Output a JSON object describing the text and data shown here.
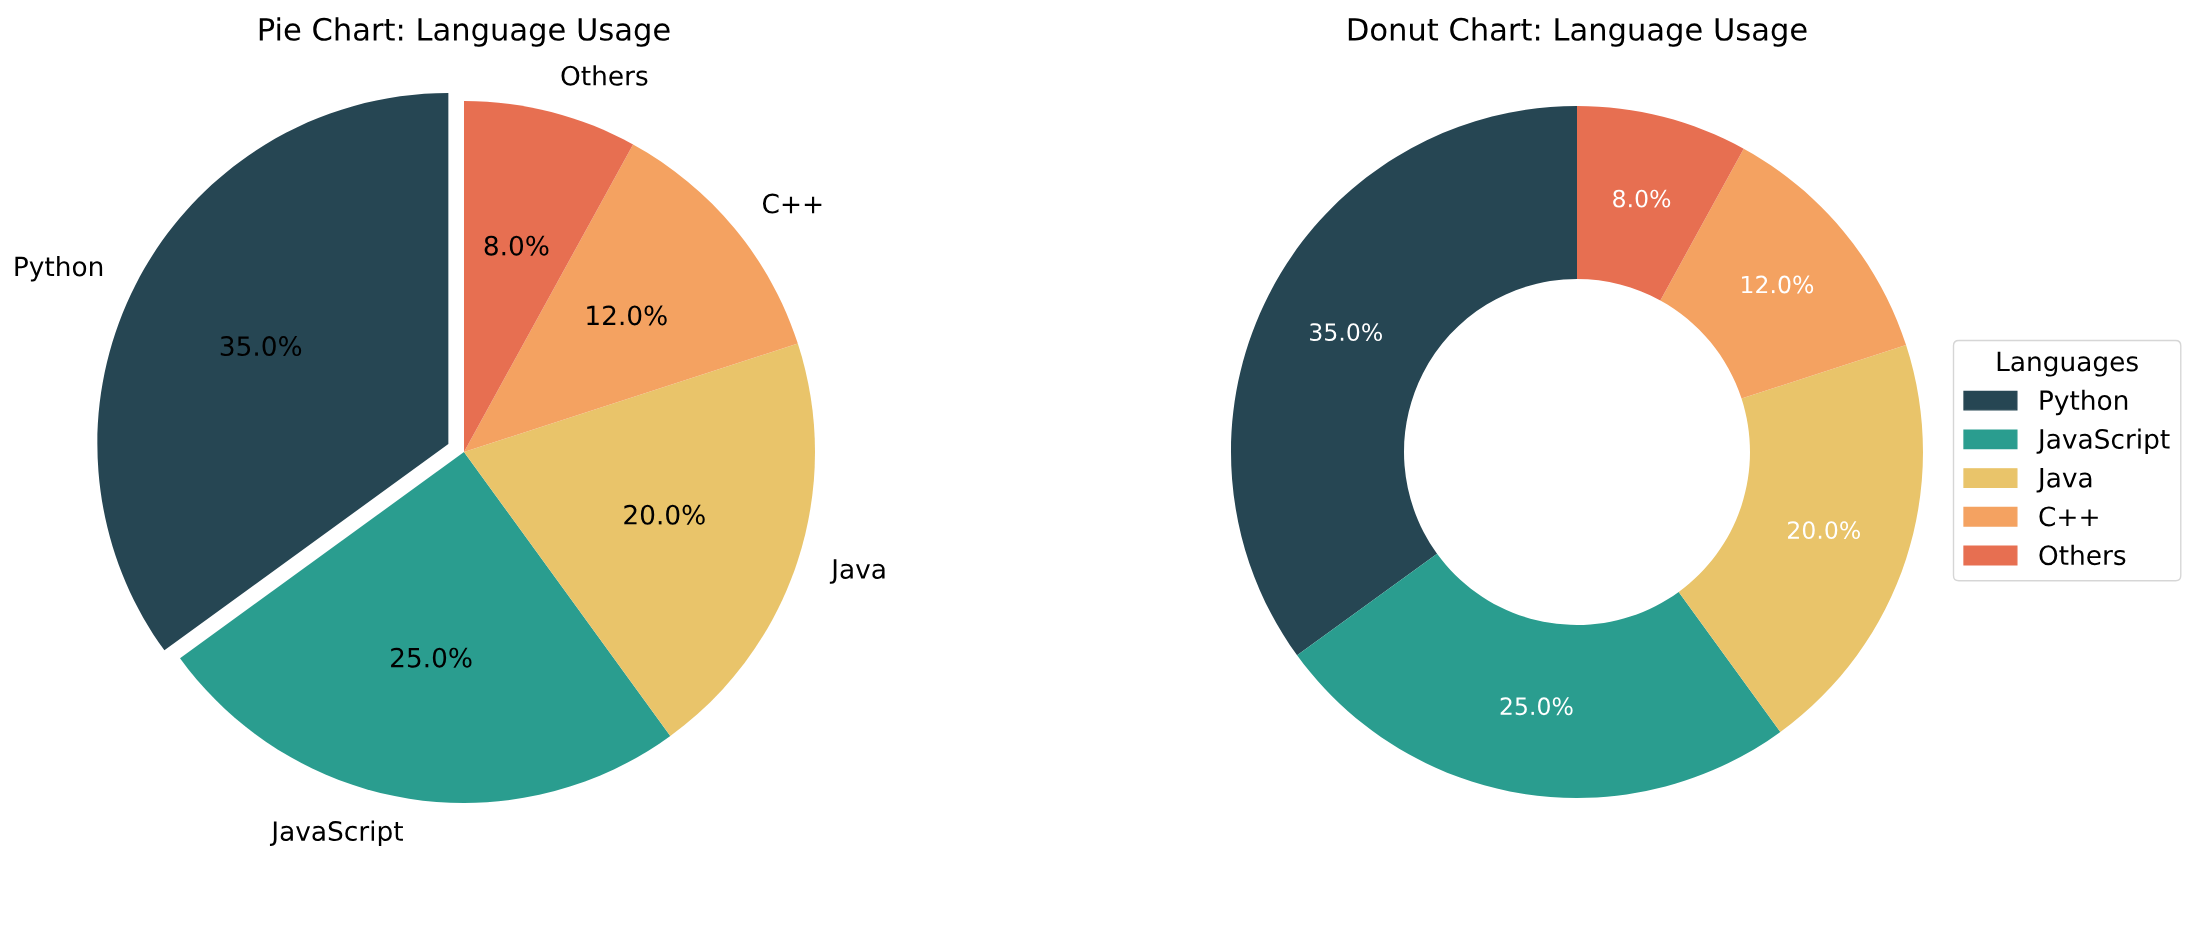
{
  "chart_data": [
    {
      "type": "pie",
      "title": "Pie Chart: Language Usage",
      "categories": [
        "Python",
        "JavaScript",
        "Java",
        "C++",
        "Others"
      ],
      "values": [
        35,
        25,
        20,
        12,
        8
      ],
      "value_labels": [
        "35.0%",
        "25.0%",
        "20.0%",
        "12.0%",
        "8.0%"
      ],
      "colors": [
        "#264653",
        "#2a9d8f",
        "#e9c46a",
        "#f4a261",
        "#e76f51"
      ]
    },
    {
      "type": "donut",
      "title": "Donut Chart: Language Usage",
      "categories": [
        "Python",
        "JavaScript",
        "Java",
        "C++",
        "Others"
      ],
      "values": [
        35,
        25,
        20,
        12,
        8
      ],
      "value_labels": [
        "35.0%",
        "25.0%",
        "20.0%",
        "12.0%",
        "8.0%"
      ],
      "colors": [
        "#264653",
        "#2a9d8f",
        "#e9c46a",
        "#f4a261",
        "#e76f51"
      ],
      "legend": "right",
      "legend_title": "Languages"
    }
  ]
}
